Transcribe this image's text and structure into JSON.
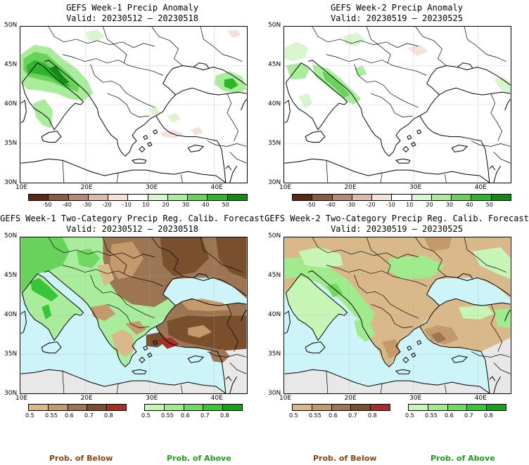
{
  "panels": [
    {
      "title": "GEFS Week-1 Precip Anomaly",
      "valid": "Valid: 20230512 – 20230518"
    },
    {
      "title": "GEFS Week-2 Precip Anomaly",
      "valid": "Valid: 20230519 – 20230525"
    },
    {
      "title": "GEFS Week-1 Two-Category Precip Reg. Calib. Forecast",
      "valid": "Valid: 20230512 – 20230518"
    },
    {
      "title": "GEFS Week-2 Two-Category Precip Reg. Calib. Forecast",
      "valid": "Valid: 20230519 – 20230525"
    }
  ],
  "axes": {
    "lat_labels": [
      "50N",
      "45N",
      "40N",
      "35N",
      "30N"
    ],
    "lon_labels": [
      "10E",
      "20E",
      "30E",
      "40E"
    ]
  },
  "anomaly_scale": {
    "labels": [
      "-50",
      "-40",
      "-30",
      "-20",
      "-10",
      "10",
      "20",
      "30",
      "40",
      "50"
    ],
    "colors": [
      "#5b2a14",
      "#8c5a42",
      "#b88878",
      "#dcb9ab",
      "#f3e2da",
      "#ffffff",
      "#d8f5d0",
      "#a9ec9c",
      "#69d25b",
      "#2fb52a",
      "#138a13"
    ]
  },
  "prob_below_scale": {
    "labels": [
      "0.5",
      "0.55",
      "0.6",
      "0.7",
      "0.8"
    ],
    "colors": [
      "#d9b98a",
      "#c49a6c",
      "#9c7552",
      "#7a4f2e",
      "#a5302a"
    ]
  },
  "prob_above_scale": {
    "labels": [
      "0.5",
      "0.55",
      "0.6",
      "0.7",
      "0.8"
    ],
    "colors": [
      "#c6f5b6",
      "#a0ec8c",
      "#6fd962",
      "#3ac43a",
      "#12a318"
    ]
  },
  "legend": {
    "below_label": "Prob. of Below",
    "above_label": "Prob. of Above",
    "below_color": "#8b4513",
    "above_color": "#1aa01a"
  },
  "colors": {
    "sea": "#cdf4f8",
    "land_no_data": "#e8e8e8"
  }
}
